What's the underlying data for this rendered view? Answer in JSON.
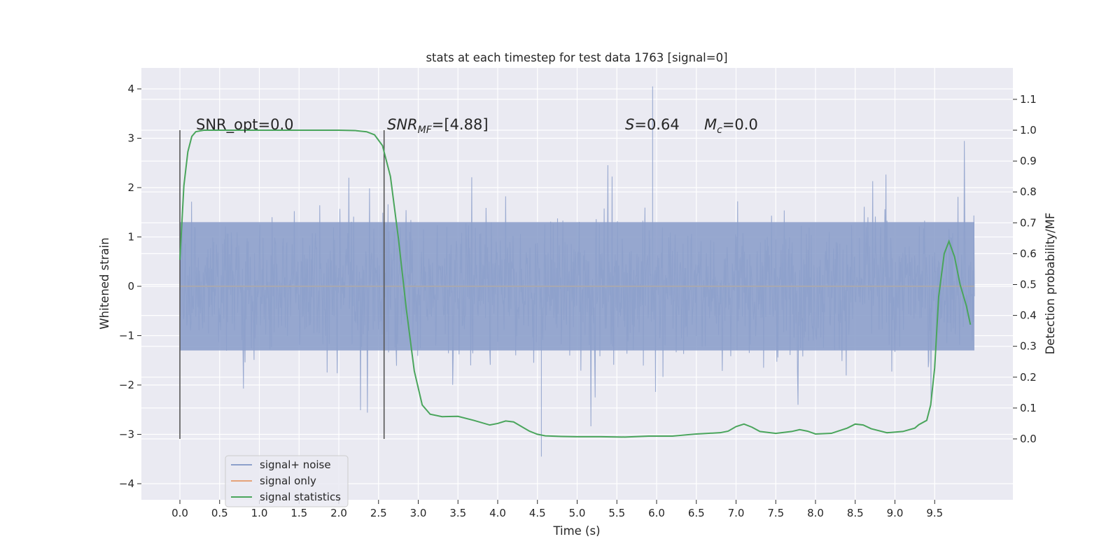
{
  "chart_data": {
    "type": "line",
    "title": "stats at each timestep for test data 1763 [signal=0]",
    "xlabel": "Time (s)",
    "ylabel": "Whitened strain",
    "ylabel_right": "Detection probability/MF",
    "xlim": [
      -0.5,
      10.5
    ],
    "ylim": [
      -4.4,
      4.4
    ],
    "ylim_right": [
      -0.2,
      1.15
    ],
    "x_ticks": [
      "0.0",
      "0.5",
      "1.0",
      "1.5",
      "2.0",
      "2.5",
      "3.0",
      "3.5",
      "4.0",
      "4.5",
      "5.0",
      "5.5",
      "6.0",
      "6.5",
      "7.0",
      "7.5",
      "8.0",
      "8.5",
      "9.0",
      "9.5"
    ],
    "y_ticks": [
      "4",
      "3",
      "2",
      "1",
      "0",
      "−1",
      "−2",
      "−3",
      "−4"
    ],
    "y_ticks_right": [
      "1.1",
      "1.0",
      "0.9",
      "0.8",
      "0.7",
      "0.6",
      "0.5",
      "0.4",
      "0.3",
      "0.2",
      "0.1",
      "0.0"
    ],
    "grid": true,
    "legend_position": "lower-left",
    "annotations": {
      "snr_opt": "SNR_opt=0.0",
      "snr_mf_base": "SNR",
      "snr_mf_sub": "MF",
      "snr_mf_rest": "=[4.88]",
      "s_base": "S",
      "s_rest": "=0.64",
      "mc_base": "M",
      "mc_sub": "c",
      "mc_rest": "=0.0"
    },
    "vertical_markers": [
      0.0,
      2.57
    ],
    "series": [
      {
        "name": "signal+ noise",
        "color": "#8da0cb",
        "x_range": [
          0.0,
          10.0
        ],
        "dense_amplitude_typical": [
          -1.3,
          1.3
        ],
        "peak_max": 4.05,
        "peak_min": -3.45
      },
      {
        "name": "signal only",
        "color": "#e5a37a",
        "x": [
          0.0,
          10.0
        ],
        "values": [
          0.0,
          0.0
        ]
      },
      {
        "name": "signal statistics",
        "color": "#4aa55c",
        "axis": "right",
        "x": [
          0.0,
          0.05,
          0.1,
          0.15,
          0.2,
          0.3,
          0.5,
          1.0,
          1.5,
          2.0,
          2.2,
          2.35,
          2.45,
          2.55,
          2.65,
          2.75,
          2.85,
          2.95,
          3.05,
          3.15,
          3.3,
          3.5,
          3.7,
          3.9,
          4.0,
          4.1,
          4.2,
          4.3,
          4.4,
          4.5,
          4.6,
          4.8,
          5.0,
          5.3,
          5.6,
          5.9,
          6.2,
          6.5,
          6.8,
          6.9,
          7.0,
          7.1,
          7.2,
          7.3,
          7.5,
          7.7,
          7.8,
          7.9,
          8.0,
          8.2,
          8.4,
          8.5,
          8.6,
          8.7,
          8.9,
          9.1,
          9.25,
          9.3,
          9.4,
          9.45,
          9.5,
          9.55,
          9.62,
          9.68,
          9.75,
          9.82,
          9.9,
          9.95
        ],
        "values": [
          0.58,
          0.82,
          0.93,
          0.98,
          0.995,
          1.0,
          1.0,
          1.0,
          1.0,
          1.0,
          0.999,
          0.995,
          0.985,
          0.95,
          0.85,
          0.65,
          0.42,
          0.22,
          0.11,
          0.08,
          0.072,
          0.073,
          0.06,
          0.045,
          0.05,
          0.058,
          0.055,
          0.04,
          0.025,
          0.015,
          0.01,
          0.008,
          0.007,
          0.007,
          0.006,
          0.009,
          0.009,
          0.016,
          0.02,
          0.025,
          0.04,
          0.048,
          0.038,
          0.024,
          0.018,
          0.024,
          0.03,
          0.025,
          0.016,
          0.018,
          0.035,
          0.048,
          0.045,
          0.033,
          0.02,
          0.024,
          0.035,
          0.046,
          0.06,
          0.11,
          0.23,
          0.46,
          0.6,
          0.64,
          0.59,
          0.5,
          0.43,
          0.37
        ]
      }
    ]
  }
}
